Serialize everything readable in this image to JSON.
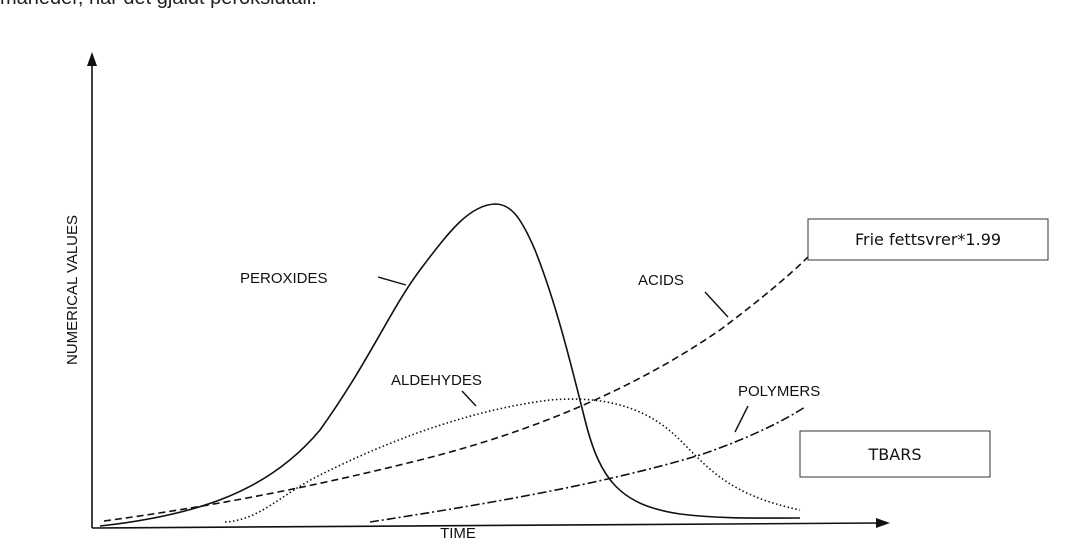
{
  "header": {
    "text": "måneder, når det gjaldt peroksidtall."
  },
  "axes": {
    "y_label": "NUMERICAL VALUES",
    "x_label": "TIME"
  },
  "curves": {
    "peroxides": "PEROXIDES",
    "acids": "ACIDS",
    "aldehydes": "ALDEHYDES",
    "polymers": "POLYMERS"
  },
  "boxes": {
    "acids_note": "Frie fettsvrer*1.99",
    "aldehydes_note": "TBARS"
  }
}
